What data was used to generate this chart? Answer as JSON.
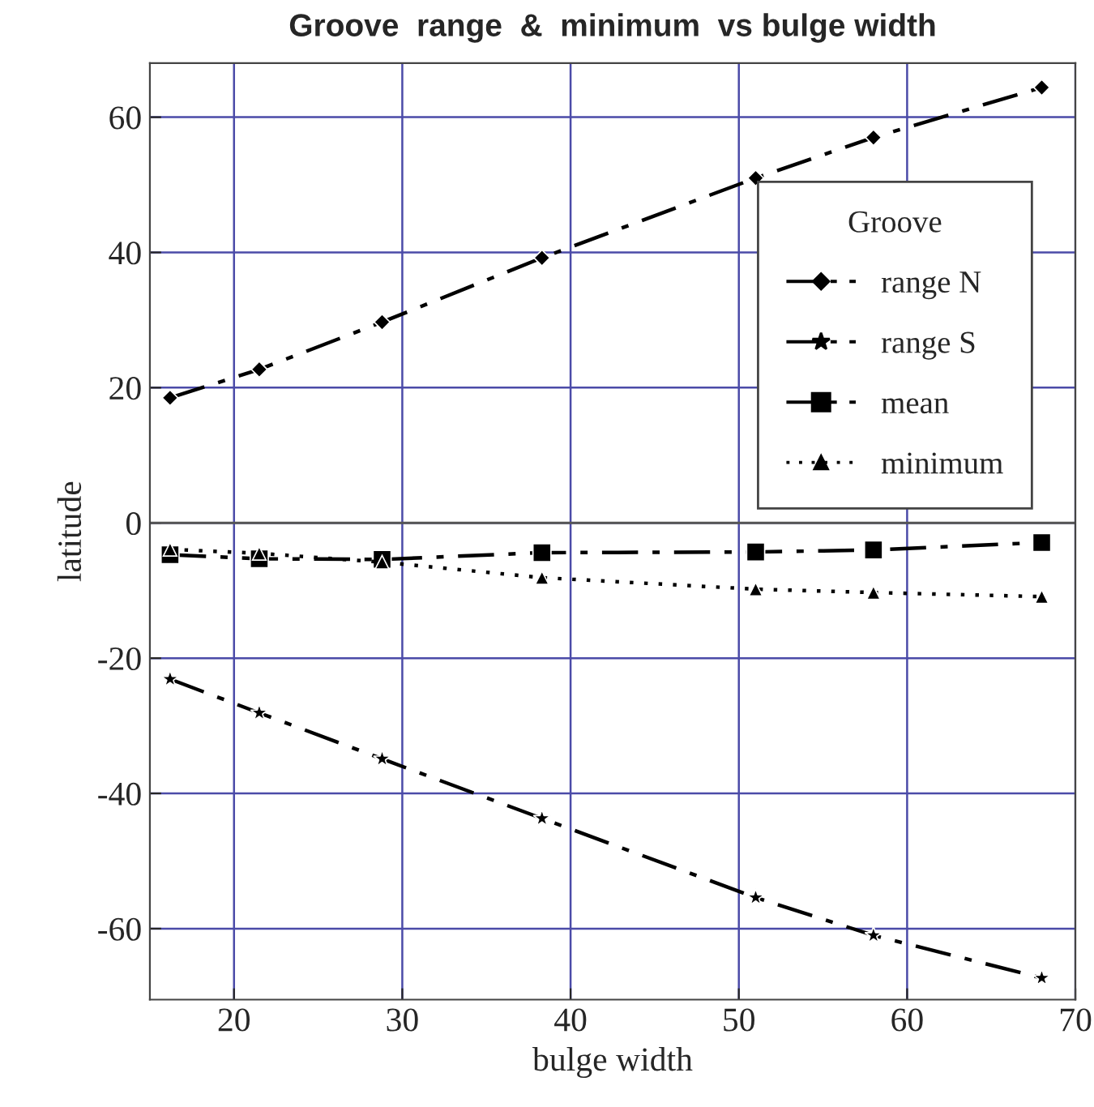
{
  "chart_data": {
    "type": "line",
    "title": "Groove  range  &  minimum  vs bulge width",
    "xlabel": "bulge width",
    "ylabel": "latitude",
    "legend_title": "Groove",
    "x": [
      16.2,
      21.5,
      28.8,
      38.3,
      51.0,
      58.0,
      68.0
    ],
    "series": [
      {
        "name": "range N",
        "color": "#000000",
        "marker": "diamond",
        "line_style": "dashdot",
        "values": [
          18.5,
          22.7,
          29.7,
          39.2,
          51.0,
          57.0,
          64.4
        ]
      },
      {
        "name": "range S",
        "color": "#000000",
        "marker": "star",
        "line_style": "dashdot",
        "values": [
          -23.1,
          -28.1,
          -34.9,
          -43.7,
          -55.4,
          -61.0,
          -67.3
        ]
      },
      {
        "name": "mean",
        "color": "#000000",
        "marker": "square",
        "line_style": "dashdot",
        "values": [
          -4.7,
          -5.3,
          -5.4,
          -4.4,
          -4.3,
          -4.0,
          -2.9
        ]
      },
      {
        "name": "minimum",
        "color": "#000000",
        "marker": "triangle",
        "line_style": "dotted",
        "values": [
          -3.9,
          -4.5,
          -5.8,
          -8.1,
          -9.8,
          -10.3,
          -10.9
        ]
      }
    ],
    "xlim": [
      15,
      70
    ],
    "ylim": [
      -70.5,
      68
    ],
    "xticks": [
      20,
      30,
      40,
      50,
      60,
      70
    ],
    "yticks": [
      -60,
      -40,
      -20,
      0,
      20,
      40,
      60
    ],
    "ref_lines": [
      {
        "axis": "y",
        "value": 0,
        "label": null,
        "color": "#555555"
      }
    ],
    "grid": true,
    "legend": "top right"
  }
}
